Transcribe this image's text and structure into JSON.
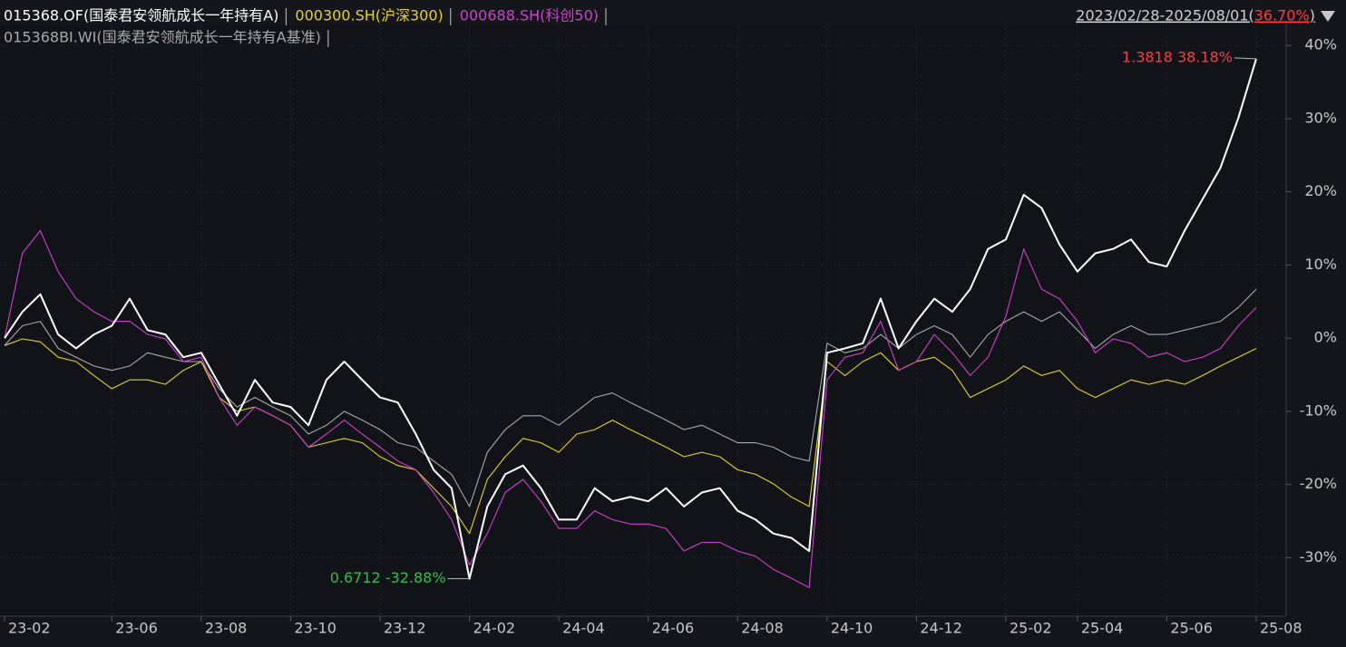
{
  "chart_data": {
    "type": "line",
    "period": "2023/02/28-2025/08/01(",
    "period_return": "36.70%",
    "period_end": ")",
    "period_return_color": "#ff3b3b",
    "max_label": {
      "text": "1.3818 38.18%",
      "color": "#ff3b3b"
    },
    "min_label": {
      "text": "0.6712 -32.88%",
      "color": "#2fbf4f"
    },
    "categories": [
      "23-02",
      null,
      null,
      null,
      null,
      null,
      "23-06",
      null,
      null,
      null,
      null,
      "23-08",
      null,
      null,
      null,
      null,
      "23-10",
      null,
      null,
      null,
      null,
      "23-12",
      null,
      null,
      null,
      null,
      "24-02",
      null,
      null,
      null,
      null,
      "24-04",
      null,
      null,
      null,
      null,
      "24-06",
      null,
      null,
      null,
      null,
      "24-08",
      null,
      null,
      null,
      null,
      "24-10",
      null,
      null,
      null,
      null,
      "24-12",
      null,
      null,
      null,
      null,
      "25-02",
      null,
      null,
      null,
      "25-04",
      null,
      null,
      null,
      null,
      "25-06",
      null,
      null,
      null,
      null,
      "25-08"
    ],
    "series": [
      {
        "name": "015368.OF(国泰君安领航成长一年持有A)",
        "color": "#ffffff",
        "values": [
          0,
          3.6,
          6,
          0.5,
          -1.4,
          0.5,
          1.7,
          5.4,
          1.1,
          0.5,
          -2.6,
          -2,
          -6.3,
          -10.6,
          -5.7,
          -8.8,
          -9.4,
          -11.9,
          -5.7,
          -3.2,
          -5.7,
          -8.1,
          -8.8,
          -13.1,
          -18,
          -20.5,
          -32.88,
          -23,
          -18.6,
          -17.4,
          -20.5,
          -24.8,
          -24.8,
          -20.5,
          -22.3,
          -21.7,
          -22.3,
          -20.5,
          -23,
          -21.1,
          -20.5,
          -23.6,
          -24.8,
          -26.7,
          -27.3,
          -29.1,
          -2,
          -1.4,
          -0.7,
          5.4,
          -1.4,
          2.3,
          5.4,
          3.6,
          6.7,
          12.2,
          13.5,
          19.6,
          17.8,
          12.8,
          9.1,
          11.6,
          12.2,
          13.5,
          10.4,
          9.8,
          14.7,
          19,
          23.3,
          30.1,
          38.18
        ]
      },
      {
        "name": "000300.SH(沪深300)",
        "color": "#e8d21d",
        "values": [
          -1,
          -0.1,
          -0.5,
          -2.6,
          -3.2,
          -5.1,
          -6.9,
          -5.7,
          -5.7,
          -6.3,
          -4.4,
          -3.2,
          -8.1,
          -10,
          -9.4,
          -10.6,
          -11.9,
          -14.9,
          -14.3,
          -13.7,
          -14.3,
          -16.2,
          -17.4,
          -18,
          -20.5,
          -23,
          -26.7,
          -19.3,
          -16.2,
          -13.7,
          -14.3,
          -15.6,
          -13.1,
          -12.5,
          -11.2,
          -12.5,
          -13.7,
          -14.9,
          -16.2,
          -15.6,
          -16.2,
          -18,
          -18.6,
          -19.9,
          -21.7,
          -23,
          -3.2,
          -5.1,
          -3.2,
          -2,
          -4.4,
          -3.2,
          -2.6,
          -4.4,
          -8.1,
          -6.9,
          -5.7,
          -3.8,
          -5.1,
          -4.4,
          -6.9,
          -8.1,
          -6.9,
          -5.7,
          -6.3,
          -5.7,
          -6.3,
          -5.1,
          -3.8,
          -2.6,
          -1.4
        ]
      },
      {
        "name": "000688.SH(科创50)",
        "color": "#d23ed2",
        "values": [
          0,
          11.6,
          14.7,
          9.1,
          5.4,
          3.6,
          2.3,
          2.3,
          0.5,
          -0.1,
          -3.2,
          -2.6,
          -8.1,
          -11.9,
          -9.4,
          -10.6,
          -11.9,
          -14.9,
          -13.1,
          -11.2,
          -13.1,
          -14.9,
          -16.8,
          -18,
          -21.1,
          -24.8,
          -31,
          -26.7,
          -21.1,
          -19.3,
          -22.3,
          -26,
          -26,
          -23.6,
          -24.8,
          -25.4,
          -25.4,
          -26,
          -29.1,
          -27.9,
          -27.9,
          -29.1,
          -29.8,
          -31.6,
          -32.8,
          -34.1,
          -5.7,
          -2.6,
          -2,
          2.3,
          -4.4,
          -3.2,
          0.5,
          -2,
          -5.1,
          -2.6,
          3,
          12.2,
          6.7,
          5.4,
          2.3,
          -2,
          -0.1,
          -0.7,
          -2.6,
          -2,
          -3.2,
          -2.6,
          -1.4,
          1.7,
          4.2
        ]
      },
      {
        "name": "015368BI.WI(国泰君安领航成长一年持有A基准)",
        "color": "#a9a9a9",
        "values": [
          -1,
          1.7,
          2.3,
          -1.4,
          -2.6,
          -3.8,
          -4.4,
          -3.8,
          -2,
          -2.6,
          -3.2,
          -3.2,
          -6.9,
          -9.4,
          -8.1,
          -9.4,
          -10.6,
          -13.1,
          -11.9,
          -10,
          -11.2,
          -12.5,
          -14.3,
          -14.9,
          -16.8,
          -18.6,
          -23,
          -15.6,
          -12.5,
          -10.6,
          -10.6,
          -11.9,
          -10,
          -8.1,
          -7.5,
          -8.8,
          -10,
          -11.2,
          -12.5,
          -11.9,
          -13.1,
          -14.3,
          -14.3,
          -14.9,
          -16.2,
          -16.8,
          -0.7,
          -2,
          -1.4,
          0.5,
          -1.4,
          0.5,
          1.7,
          0.5,
          -2.6,
          0.5,
          2.3,
          3.6,
          2.3,
          3.6,
          1.1,
          -1.4,
          0.5,
          1.7,
          0.5,
          0.5,
          1.1,
          1.7,
          2.3,
          4.2,
          6.7
        ]
      }
    ],
    "ylim": [
      -38,
      43
    ],
    "yticks": [
      {
        "value": 40,
        "label": "40%"
      },
      {
        "value": 30,
        "label": "30%"
      },
      {
        "value": 20,
        "label": "20%"
      },
      {
        "value": 10,
        "label": "10%"
      },
      {
        "value": 0,
        "label": "0%"
      },
      {
        "value": -10,
        "label": "-10%"
      },
      {
        "value": -20,
        "label": "-20%"
      },
      {
        "value": -30,
        "label": "-30%"
      }
    ],
    "grid": true
  }
}
